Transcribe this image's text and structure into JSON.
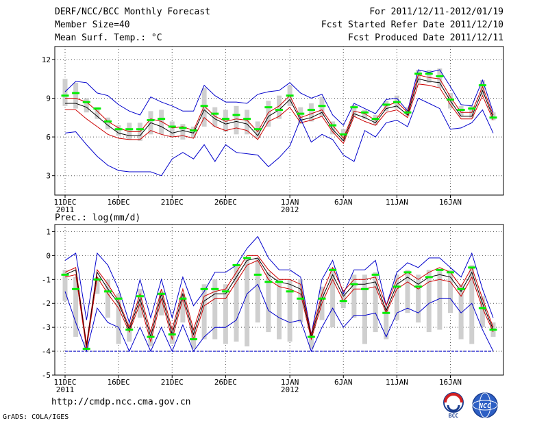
{
  "header": {
    "title": "DERF/NCC/BCC Monthly Forecast",
    "member_size": "Member Size=40",
    "variable1": "Mean Surf. Temp.: °C",
    "for_range": "For 2011/12/11-2012/01/19",
    "started": "Fcst Started Refer Date 2011/12/10",
    "produced": "Fcst Produced Date 2011/12/11"
  },
  "footer": {
    "url": "http://cmdp.ncc.cma.gov.cn",
    "grads": "GrADS: COLA/IGES",
    "logo1_text": "BCC",
    "logo2_text": "NCC"
  },
  "colors": {
    "upper": "#0000cc",
    "lower_envelope": "#dd0000",
    "mean": "#000000",
    "box": "#cfcfcf",
    "median": "#00ee00",
    "red_inner": "#cc0000"
  },
  "chart_data": [
    {
      "type": "line",
      "title": "Mean Surf. Temp.: °C",
      "x_tick_labels": [
        {
          "day": 0,
          "label": "11DEC",
          "sub": "2011"
        },
        {
          "day": 5,
          "label": "16DEC"
        },
        {
          "day": 10,
          "label": "21DEC"
        },
        {
          "day": 15,
          "label": "26DEC"
        },
        {
          "day": 21,
          "label": "1JAN",
          "sub": "2012"
        },
        {
          "day": 26,
          "label": "6JAN"
        },
        {
          "day": 31,
          "label": "11JAN"
        },
        {
          "day": 36,
          "label": "16JAN"
        }
      ],
      "ylim": [
        1.5,
        13
      ],
      "yticks": [
        3,
        6,
        9,
        12
      ],
      "days": 40,
      "series": [
        {
          "name": "max",
          "values": [
            9.5,
            10.3,
            10.2,
            9.4,
            9.2,
            8.5,
            8.0,
            7.7,
            9.1,
            8.7,
            8.4,
            8.0,
            8.0,
            10.0,
            9.2,
            8.7,
            8.7,
            8.6,
            9.3,
            9.5,
            9.6,
            10.2,
            9.4,
            9.0,
            9.3,
            7.7,
            6.9,
            8.6,
            8.2,
            7.8,
            8.9,
            9.0,
            8.0,
            11.2,
            11.0,
            11.2,
            9.9,
            8.5,
            8.4,
            10.4,
            7.9
          ]
        },
        {
          "name": "upper",
          "values": [
            9.0,
            9.0,
            8.7,
            8.0,
            7.2,
            6.7,
            6.4,
            6.4,
            7.4,
            7.2,
            6.7,
            6.8,
            6.5,
            8.4,
            7.6,
            7.2,
            7.4,
            7.3,
            6.4,
            7.9,
            8.4,
            9.2,
            7.5,
            7.8,
            8.1,
            6.9,
            5.9,
            8.0,
            7.8,
            7.3,
            8.4,
            8.7,
            7.9,
            10.8,
            10.6,
            10.5,
            9.1,
            7.9,
            7.9,
            9.9,
            7.7
          ]
        },
        {
          "name": "mean",
          "values": [
            8.6,
            8.6,
            8.3,
            7.6,
            6.9,
            6.3,
            6.1,
            6.1,
            7.1,
            6.8,
            6.3,
            6.5,
            6.3,
            8.1,
            7.4,
            7.0,
            7.2,
            7.0,
            6.1,
            7.6,
            8.1,
            8.9,
            7.3,
            7.5,
            7.9,
            6.6,
            5.7,
            7.8,
            7.5,
            7.1,
            8.2,
            8.4,
            7.7,
            10.5,
            10.3,
            10.2,
            8.8,
            7.6,
            7.6,
            9.6,
            7.5
          ]
        },
        {
          "name": "lower",
          "values": [
            8.1,
            8.1,
            7.4,
            6.8,
            6.2,
            5.9,
            5.8,
            5.8,
            6.5,
            6.2,
            6.0,
            6.1,
            5.9,
            7.5,
            6.8,
            6.5,
            6.7,
            6.5,
            5.8,
            7.2,
            7.6,
            8.3,
            7.1,
            7.3,
            7.6,
            6.4,
            5.5,
            7.6,
            7.2,
            6.9,
            7.9,
            8.1,
            7.5,
            10.1,
            10.0,
            9.8,
            8.5,
            7.4,
            7.4,
            9.2,
            7.3
          ]
        },
        {
          "name": "min",
          "values": [
            6.3,
            6.4,
            5.4,
            4.5,
            3.8,
            3.4,
            3.3,
            3.3,
            3.3,
            3.0,
            4.3,
            4.8,
            4.3,
            5.4,
            4.1,
            5.4,
            4.8,
            4.7,
            4.6,
            3.7,
            4.4,
            5.3,
            7.4,
            5.6,
            6.2,
            5.8,
            4.6,
            4.1,
            6.5,
            6.0,
            7.1,
            7.3,
            6.8,
            9.0,
            8.6,
            8.2,
            6.6,
            6.7,
            7.1,
            8.1,
            6.3
          ]
        }
      ],
      "box_low": [
        8.4,
        8.2,
        7.9,
        7.4,
        6.6,
        6.1,
        5.8,
        5.7,
        6.2,
        6.2,
        6.0,
        5.8,
        5.9,
        6.8,
        6.8,
        6.4,
        6.2,
        6.2,
        5.9,
        6.8,
        7.4,
        8.4,
        7.0,
        7.2,
        7.6,
        6.2,
        5.7,
        7.6,
        7.4,
        6.9,
        8.0,
        8.2,
        7.6,
        10.2,
        10.2,
        9.8,
        8.2,
        7.6,
        7.5,
        9.2,
        7.3
      ],
      "box_high": [
        10.5,
        10.2,
        9.0,
        8.3,
        7.5,
        6.9,
        7.1,
        7.1,
        8.0,
        8.1,
        7.2,
        7.0,
        6.8,
        9.8,
        8.3,
        8.1,
        8.4,
        8.1,
        7.2,
        8.8,
        9.2,
        10.0,
        8.3,
        8.6,
        9.1,
        7.2,
        6.6,
        8.5,
        8.1,
        7.7,
        8.8,
        9.2,
        8.3,
        11.2,
        11.2,
        11.3,
        9.4,
        8.4,
        8.4,
        10.4,
        7.9
      ],
      "median": [
        9.2,
        9.4,
        8.7,
        8.2,
        7.2,
        6.6,
        6.6,
        6.6,
        7.3,
        7.4,
        6.8,
        6.7,
        6.5,
        8.4,
        7.8,
        7.4,
        7.7,
        7.4,
        6.6,
        8.3,
        8.1,
        9.2,
        7.8,
        8.1,
        8.4,
        6.9,
        6.2,
        8.3,
        7.9,
        7.4,
        8.5,
        8.7,
        7.9,
        10.9,
        10.9,
        10.7,
        8.9,
        8.1,
        8.2,
        10.0,
        7.5
      ]
    },
    {
      "type": "line",
      "title": "Prec.: log(mm/d)",
      "x_tick_labels": [
        {
          "day": 0,
          "label": "11DEC",
          "sub": "2011"
        },
        {
          "day": 5,
          "label": "16DEC"
        },
        {
          "day": 10,
          "label": "21DEC"
        },
        {
          "day": 15,
          "label": "26DEC"
        },
        {
          "day": 21,
          "label": "1JAN",
          "sub": "2012"
        },
        {
          "day": 26,
          "label": "6JAN"
        },
        {
          "day": 31,
          "label": "11JAN"
        },
        {
          "day": 36,
          "label": "16JAN"
        }
      ],
      "ylim": [
        -5,
        1.3
      ],
      "yticks": [
        -5,
        -4,
        -3,
        -2,
        -1,
        0,
        1
      ],
      "days": 40,
      "baseline": -4,
      "series": [
        {
          "name": "max",
          "values": [
            -0.2,
            0.1,
            -2.7,
            0.1,
            -0.4,
            -1.4,
            -2.8,
            -1.0,
            -2.6,
            -1.0,
            -2.6,
            -0.9,
            -2.1,
            -1.5,
            -0.7,
            -0.7,
            -0.4,
            0.3,
            0.8,
            -0.1,
            -0.6,
            -0.6,
            -0.9,
            -3.3,
            -1.0,
            -0.2,
            -1.6,
            -0.6,
            -0.6,
            -0.2,
            -2.1,
            -0.7,
            -0.3,
            -0.5,
            -0.1,
            -0.1,
            -0.5,
            -0.9,
            0.1,
            -1.4,
            -2.6
          ]
        },
        {
          "name": "upper",
          "values": [
            -0.7,
            -0.5,
            -3.7,
            -0.6,
            -1.2,
            -1.9,
            -3.0,
            -1.6,
            -3.2,
            -1.4,
            -3.1,
            -1.4,
            -3.1,
            -1.7,
            -1.5,
            -1.4,
            -0.7,
            0.0,
            0.0,
            -0.6,
            -1.0,
            -1.0,
            -1.2,
            -3.3,
            -1.6,
            -0.5,
            -1.5,
            -1.0,
            -1.0,
            -0.9,
            -2.1,
            -1.0,
            -0.7,
            -1.0,
            -0.7,
            -0.5,
            -0.7,
            -1.3,
            -0.5,
            -1.8,
            -3.0
          ]
        },
        {
          "name": "mean",
          "values": [
            -0.8,
            -0.6,
            -3.8,
            -0.7,
            -1.4,
            -2.0,
            -3.1,
            -1.8,
            -3.4,
            -1.6,
            -3.3,
            -1.6,
            -3.3,
            -1.9,
            -1.6,
            -1.6,
            -0.9,
            -0.2,
            -0.1,
            -0.8,
            -1.1,
            -1.2,
            -1.4,
            -3.4,
            -1.8,
            -0.8,
            -1.7,
            -1.2,
            -1.2,
            -1.1,
            -2.3,
            -1.2,
            -0.9,
            -1.2,
            -0.9,
            -0.8,
            -0.9,
            -1.5,
            -0.7,
            -2.0,
            -3.1
          ]
        },
        {
          "name": "lower",
          "values": [
            -0.9,
            -0.8,
            -3.9,
            -0.9,
            -1.6,
            -2.2,
            -3.2,
            -2.0,
            -3.6,
            -1.8,
            -3.5,
            -1.8,
            -3.5,
            -2.1,
            -1.8,
            -1.8,
            -1.1,
            -0.4,
            -0.2,
            -1.0,
            -1.3,
            -1.4,
            -1.6,
            -3.5,
            -2.0,
            -1.0,
            -1.9,
            -1.4,
            -1.4,
            -1.3,
            -2.4,
            -1.4,
            -1.1,
            -1.4,
            -1.1,
            -1.0,
            -1.1,
            -1.7,
            -0.9,
            -2.2,
            -3.2
          ]
        },
        {
          "name": "min",
          "values": [
            -1.5,
            -2.8,
            -4.0,
            -2.2,
            -2.8,
            -3.0,
            -4.0,
            -3.0,
            -4.0,
            -3.0,
            -4.0,
            -2.9,
            -4.0,
            -3.4,
            -3.0,
            -3.0,
            -2.7,
            -1.6,
            -1.2,
            -2.3,
            -2.6,
            -2.8,
            -2.7,
            -4.0,
            -3.0,
            -2.2,
            -3.0,
            -2.5,
            -2.5,
            -2.4,
            -3.4,
            -2.4,
            -2.2,
            -2.4,
            -2.0,
            -1.8,
            -1.8,
            -2.4,
            -2.0,
            -3.1,
            -4.0
          ]
        }
      ],
      "box_low": [
        -1.9,
        -3.4,
        -4.0,
        -1.6,
        -2.6,
        -3.7,
        -3.6,
        -2.6,
        -3.8,
        -2.5,
        -3.7,
        -2.8,
        -3.9,
        -3.5,
        -3.5,
        -3.7,
        -3.6,
        -3.8,
        -2.8,
        -3.2,
        -3.5,
        -3.6,
        -2.8,
        -3.9,
        -2.7,
        -3.0,
        -2.2,
        -2.6,
        -3.7,
        -3.2,
        -3.5,
        -2.7,
        -2.4,
        -2.8,
        -3.2,
        -3.1,
        -2.4,
        -3.5,
        -3.7,
        -3.0,
        -3.4
      ],
      "box_high": [
        -0.6,
        -0.9,
        -3.6,
        -0.9,
        -1.0,
        -1.6,
        -2.8,
        -1.4,
        -3.1,
        -1.5,
        -3.0,
        -1.6,
        -3.0,
        -1.2,
        -1.0,
        -1.2,
        -0.4,
        -0.1,
        -0.1,
        -0.7,
        -1.0,
        -1.0,
        -1.0,
        -3.3,
        -1.3,
        -0.5,
        -1.5,
        -0.8,
        -0.8,
        -0.7,
        -2.1,
        -0.8,
        -0.6,
        -0.8,
        -0.6,
        -0.6,
        -0.6,
        -1.2,
        -0.4,
        -1.7,
        -2.8
      ],
      "median": [
        -0.8,
        -1.4,
        -3.9,
        -1.0,
        -1.5,
        -1.8,
        -3.1,
        -1.7,
        -3.4,
        -1.6,
        -3.3,
        -1.8,
        -3.5,
        -1.4,
        -1.4,
        -1.5,
        -0.4,
        -0.1,
        -0.8,
        -1.1,
        -1.1,
        -1.5,
        -1.8,
        -3.4,
        -1.8,
        -0.6,
        -1.9,
        -1.2,
        -1.4,
        -0.8,
        -2.4,
        -1.3,
        -0.7,
        -1.3,
        -0.9,
        -0.6,
        -0.7,
        -1.4,
        -0.5,
        -2.2,
        -3.1
      ]
    }
  ]
}
